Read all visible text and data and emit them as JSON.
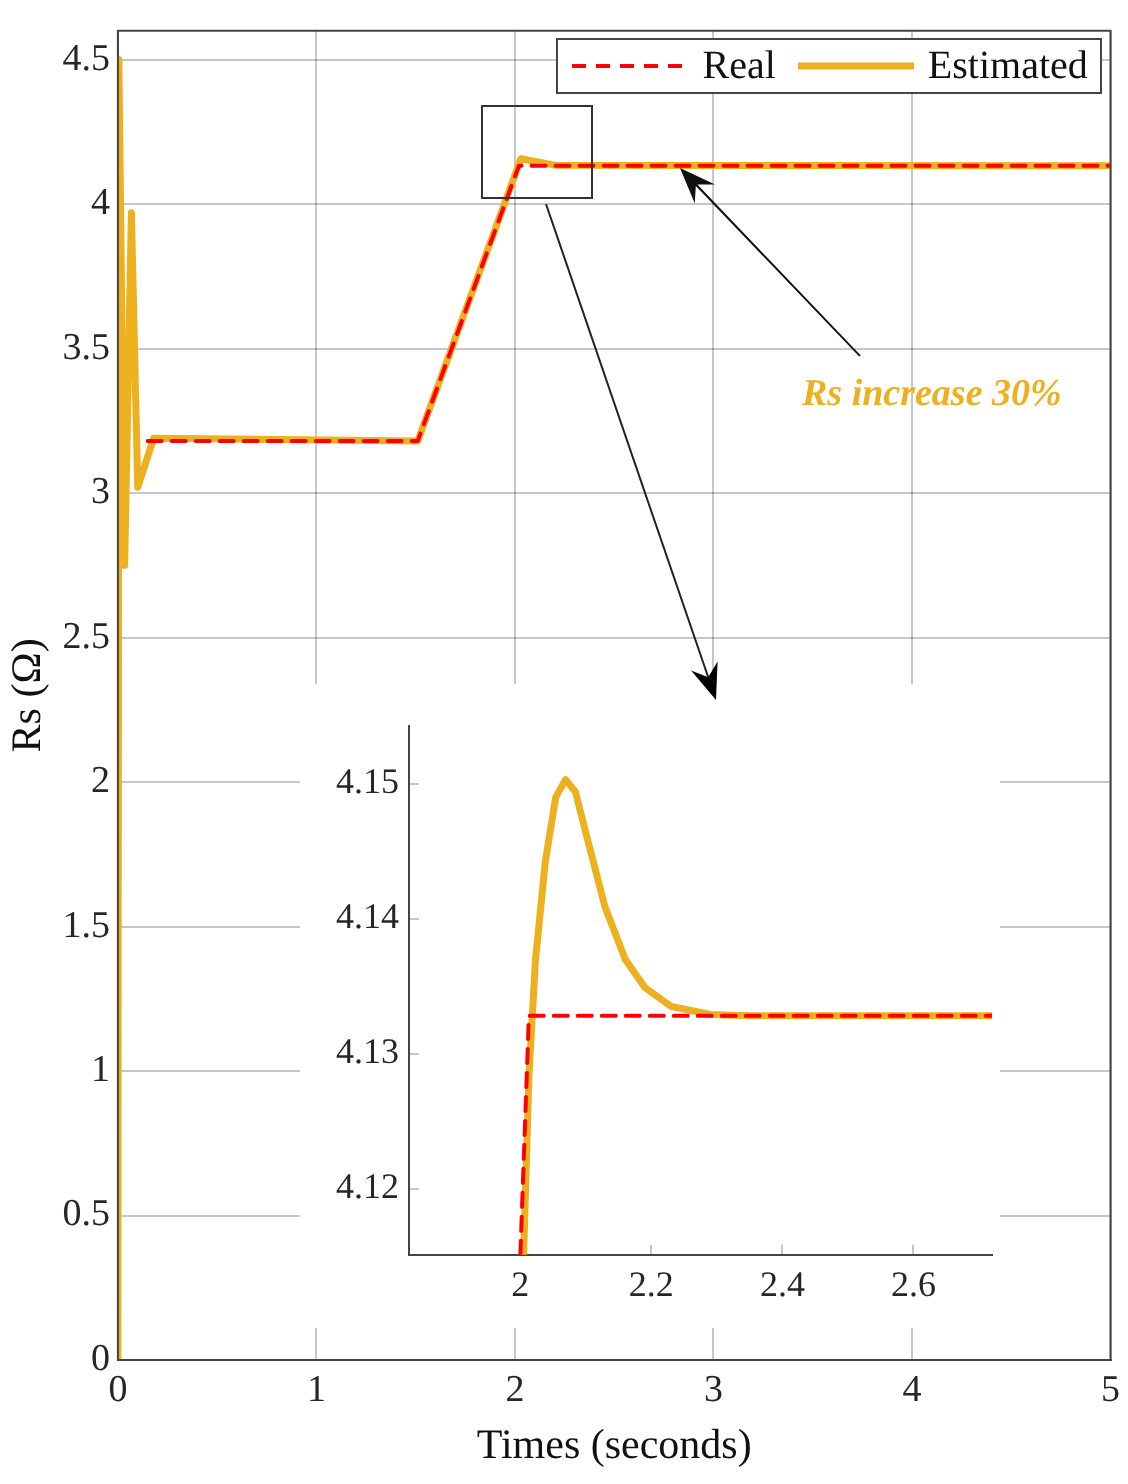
{
  "chart_data": [
    {
      "type": "line",
      "xlabel": "Times (seconds)",
      "ylabel": "Rs (Ω)",
      "xlim": [
        0,
        5
      ],
      "ylim": [
        0,
        4.6
      ],
      "xticks": [
        0,
        1,
        2,
        3,
        4,
        5
      ],
      "yticks": [
        0,
        0.5,
        1,
        1.5,
        2,
        2.5,
        3,
        3.5,
        4,
        4.5
      ],
      "grid": true,
      "legend": "top right",
      "series": [
        {
          "name": "Real",
          "color": "#ff0000",
          "line_style": "dashed",
          "x": [
            0.15,
            1.51,
            2.02,
            5
          ],
          "values": [
            3.18,
            3.18,
            4.133,
            4.133
          ]
        },
        {
          "name": "Estimated",
          "color": "#edb120",
          "line_style": "solid",
          "x": [
            0,
            0.005,
            0.034,
            0.068,
            0.1,
            0.18,
            1.51,
            2.03,
            2.2,
            5
          ],
          "values": [
            0,
            4.5,
            2.75,
            3.97,
            3.02,
            3.19,
            3.18,
            4.157,
            4.135,
            4.133
          ]
        }
      ],
      "annotations": [
        "Rs increase 30%"
      ]
    },
    {
      "type": "line",
      "xlim": [
        1.83,
        2.72
      ],
      "ylim": [
        4.1151,
        4.1543
      ],
      "xticks": [
        2,
        2.2,
        2.4,
        2.6
      ],
      "yticks": [
        4.12,
        4.13,
        4.14,
        4.15
      ],
      "grid": false,
      "series": [
        {
          "color": "#ff0000",
          "line_style": "dashed",
          "x": [
            2.0,
            2.013,
            2.72
          ],
          "values": [
            4.1151,
            4.1328,
            4.1328
          ]
        },
        {
          "color": "#edb120",
          "line_style": "solid",
          "x": [
            2.005,
            2.013,
            2.023,
            2.038,
            2.054,
            2.069,
            2.084,
            2.104,
            2.129,
            2.16,
            2.19,
            2.23,
            2.29,
            2.35,
            2.72
          ],
          "values": [
            4.1151,
            4.1283,
            4.1369,
            4.1442,
            4.149,
            4.1503,
            4.1494,
            4.1456,
            4.1409,
            4.137,
            4.1349,
            4.1335,
            4.1329,
            4.1328,
            4.1328
          ]
        }
      ]
    }
  ]
}
